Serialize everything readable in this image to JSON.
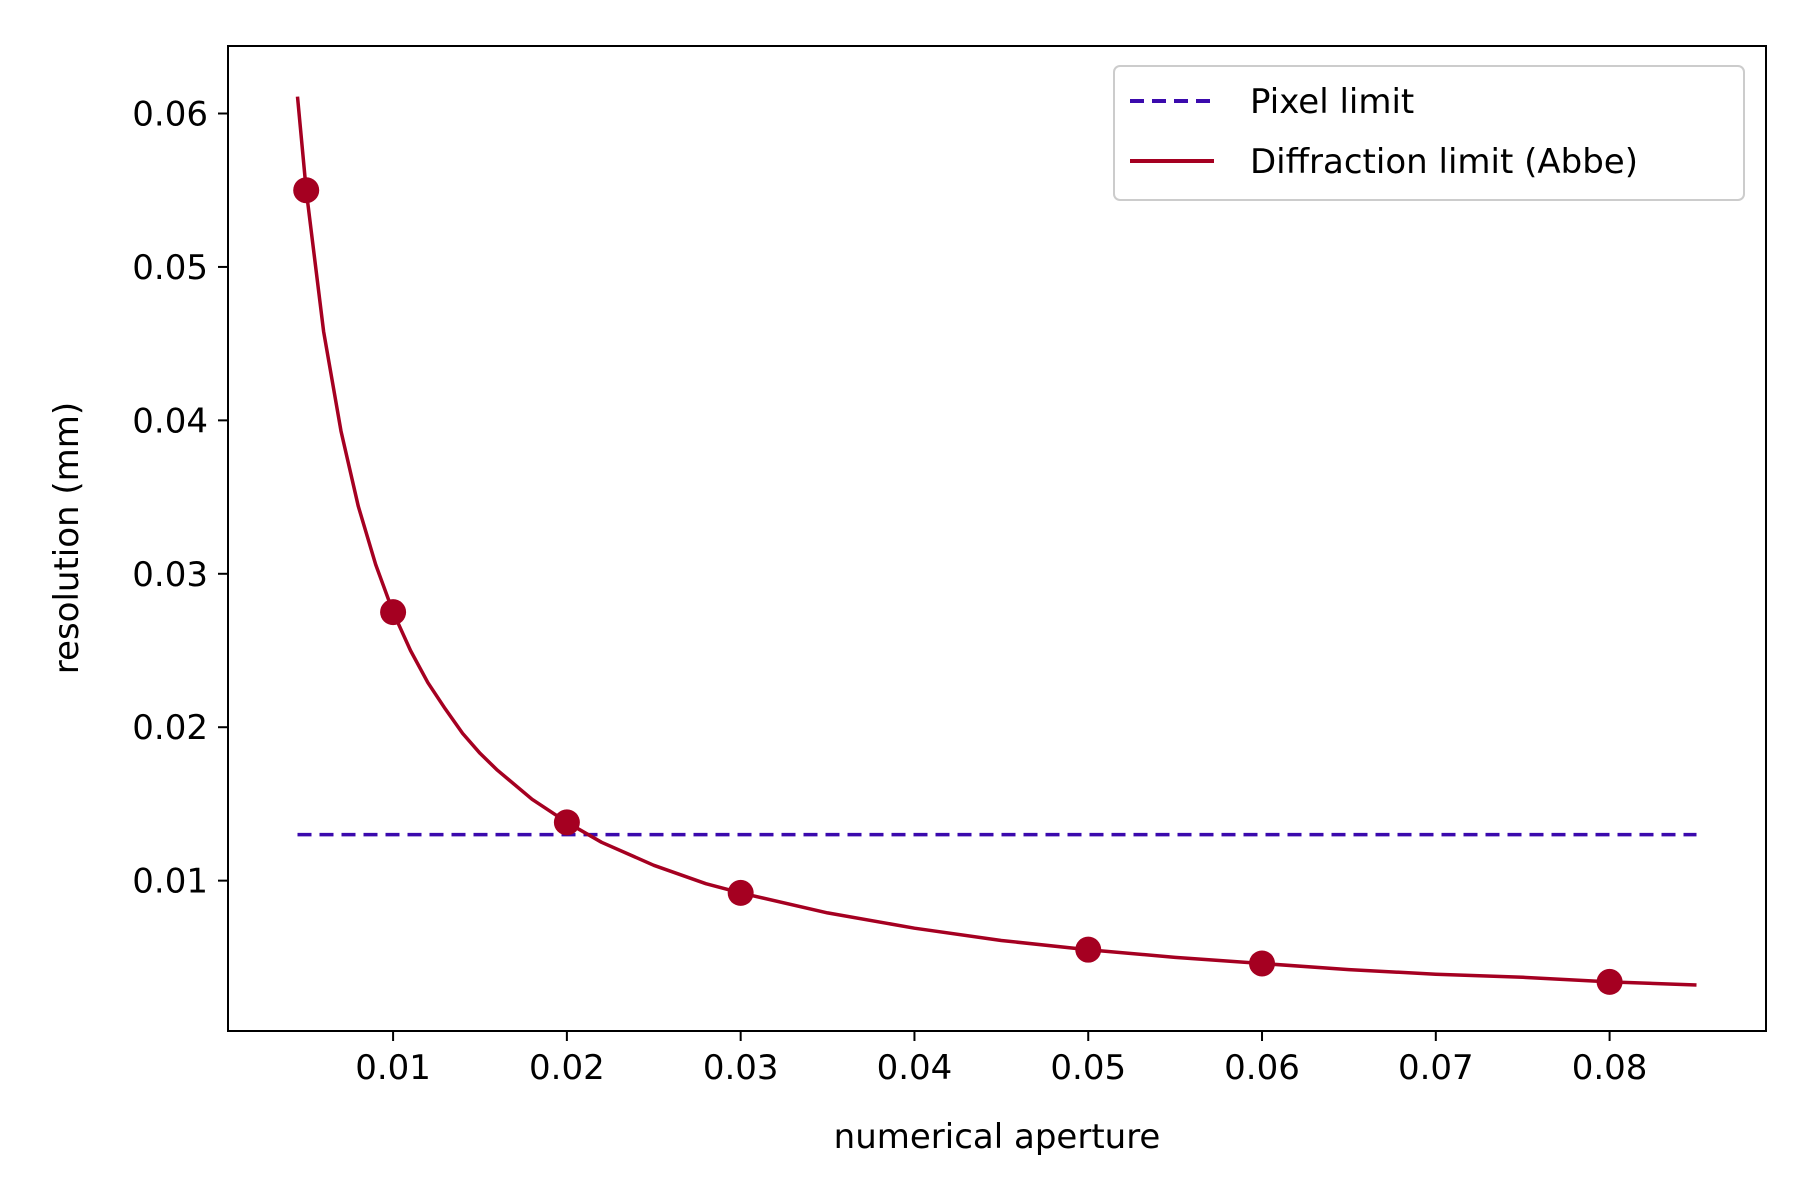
{
  "chart_data": {
    "type": "line",
    "title": "",
    "xlabel": "numerical aperture",
    "ylabel": "resolution (mm)",
    "xlim": [
      0.0005,
      0.089
    ],
    "ylim": [
      0.0002,
      0.0644
    ],
    "xticks": [
      0.01,
      0.02,
      0.03,
      0.04,
      0.05,
      0.06,
      0.07,
      0.08
    ],
    "xtick_labels": [
      "0.01",
      "0.02",
      "0.03",
      "0.04",
      "0.05",
      "0.06",
      "0.07",
      "0.08"
    ],
    "yticks": [
      0.01,
      0.02,
      0.03,
      0.04,
      0.05,
      0.06
    ],
    "ytick_labels": [
      "0.01",
      "0.02",
      "0.03",
      "0.04",
      "0.05",
      "0.06"
    ],
    "grid": false,
    "legend_position": "top-right",
    "series": [
      {
        "name": "Pixel limit",
        "style": "dashed",
        "color": "#3b0aad",
        "x": [
          0.0045,
          0.085
        ],
        "y": [
          0.013,
          0.013
        ]
      },
      {
        "name": "Diffraction limit (Abbe)",
        "style": "solid",
        "color": "#a50021",
        "x": [
          0.0045,
          0.005,
          0.006,
          0.007,
          0.008,
          0.009,
          0.01,
          0.011,
          0.012,
          0.013,
          0.014,
          0.015,
          0.016,
          0.018,
          0.02,
          0.022,
          0.025,
          0.028,
          0.03,
          0.035,
          0.04,
          0.045,
          0.05,
          0.055,
          0.06,
          0.065,
          0.07,
          0.075,
          0.08,
          0.085
        ],
        "y": [
          0.0611,
          0.055,
          0.0458,
          0.0393,
          0.0344,
          0.0306,
          0.0275,
          0.025,
          0.0229,
          0.0212,
          0.0196,
          0.0183,
          0.0172,
          0.0153,
          0.0138,
          0.0125,
          0.011,
          0.0098,
          0.0092,
          0.0079,
          0.0069,
          0.0061,
          0.0055,
          0.005,
          0.0046,
          0.0042,
          0.0039,
          0.0037,
          0.0034,
          0.0032
        ]
      }
    ],
    "markers": {
      "color": "#a50021",
      "x": [
        0.005,
        0.01,
        0.02,
        0.03,
        0.05,
        0.06,
        0.08
      ],
      "y": [
        0.055,
        0.0275,
        0.0138,
        0.0092,
        0.0055,
        0.0046,
        0.0034
      ]
    }
  }
}
